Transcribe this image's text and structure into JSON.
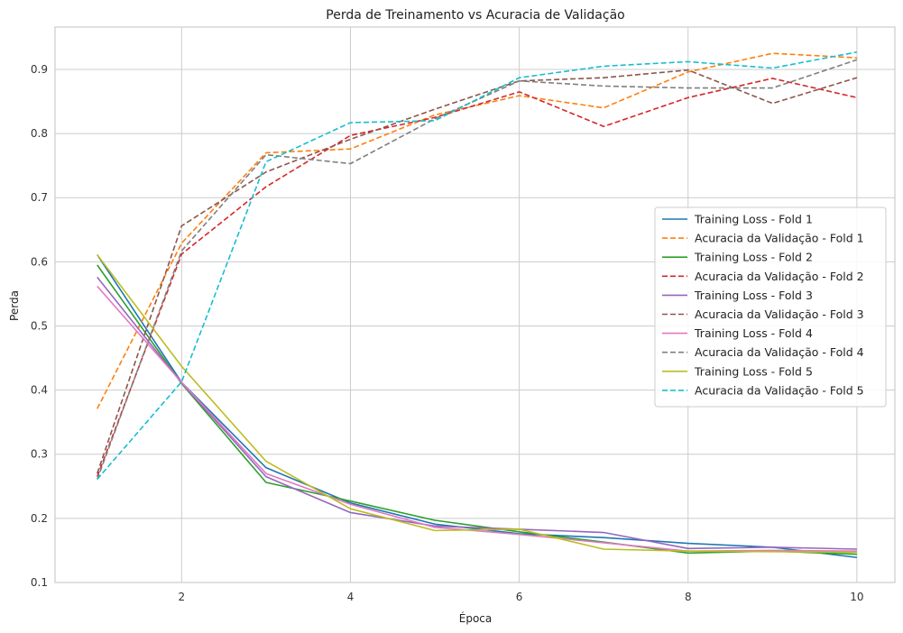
{
  "chart_data": {
    "type": "line",
    "title": "Perda de Treinamento vs Acuracia de Validação",
    "xlabel": "Época",
    "ylabel": "Perda",
    "xlim": [
      0.5,
      10.45
    ],
    "ylim": [
      0.1,
      0.966
    ],
    "xticks": [
      2,
      4,
      6,
      8,
      10
    ],
    "yticks": [
      0.1,
      0.2,
      0.3,
      0.4,
      0.5,
      0.6,
      0.7,
      0.8,
      0.9
    ],
    "grid": true,
    "legend_position": "center-right",
    "x": [
      1,
      2,
      3,
      4,
      5,
      6,
      7,
      8,
      9,
      10
    ],
    "series": [
      {
        "name": "Training Loss - Fold 1",
        "style": "solid",
        "color": "#1f77b4",
        "values": [
          0.611,
          0.412,
          0.279,
          0.224,
          0.191,
          0.176,
          0.17,
          0.161,
          0.155,
          0.139
        ]
      },
      {
        "name": "Acuracia da Validação - Fold 1",
        "style": "dashed",
        "color": "#ff7f0e",
        "values": [
          0.371,
          0.629,
          0.77,
          0.776,
          0.829,
          0.859,
          0.84,
          0.896,
          0.925,
          0.918
        ]
      },
      {
        "name": "Training Loss - Fold 2",
        "style": "solid",
        "color": "#2ca02c",
        "values": [
          0.595,
          0.41,
          0.256,
          0.227,
          0.197,
          0.179,
          0.163,
          0.146,
          0.149,
          0.144
        ]
      },
      {
        "name": "Acuracia da Validação - Fold 2",
        "style": "dashed",
        "color": "#d62728",
        "values": [
          0.265,
          0.612,
          0.717,
          0.797,
          0.825,
          0.865,
          0.811,
          0.856,
          0.886,
          0.856
        ]
      },
      {
        "name": "Training Loss - Fold 3",
        "style": "solid",
        "color": "#9467bd",
        "values": [
          0.576,
          0.411,
          0.265,
          0.209,
          0.188,
          0.183,
          0.178,
          0.153,
          0.155,
          0.152
        ]
      },
      {
        "name": "Acuracia da Validação - Fold 3",
        "style": "dashed",
        "color": "#8c564b",
        "values": [
          0.27,
          0.656,
          0.74,
          0.791,
          0.838,
          0.882,
          0.887,
          0.899,
          0.847,
          0.887
        ]
      },
      {
        "name": "Training Loss - Fold 4",
        "style": "solid",
        "color": "#e377c2",
        "values": [
          0.562,
          0.412,
          0.27,
          0.222,
          0.186,
          0.175,
          0.162,
          0.149,
          0.15,
          0.149
        ]
      },
      {
        "name": "Acuracia da Validação - Fold 4",
        "style": "dashed",
        "color": "#7f7f7f",
        "values": [
          0.261,
          0.617,
          0.767,
          0.753,
          0.823,
          0.882,
          0.874,
          0.871,
          0.871,
          0.915
        ]
      },
      {
        "name": "Training Loss - Fold 5",
        "style": "solid",
        "color": "#bcbd22",
        "values": [
          0.611,
          0.437,
          0.289,
          0.215,
          0.181,
          0.183,
          0.152,
          0.149,
          0.148,
          0.147
        ]
      },
      {
        "name": "Acuracia da Validação - Fold 5",
        "style": "dashed",
        "color": "#17becf",
        "values": [
          0.261,
          0.413,
          0.756,
          0.817,
          0.82,
          0.887,
          0.905,
          0.912,
          0.902,
          0.927
        ]
      }
    ]
  }
}
